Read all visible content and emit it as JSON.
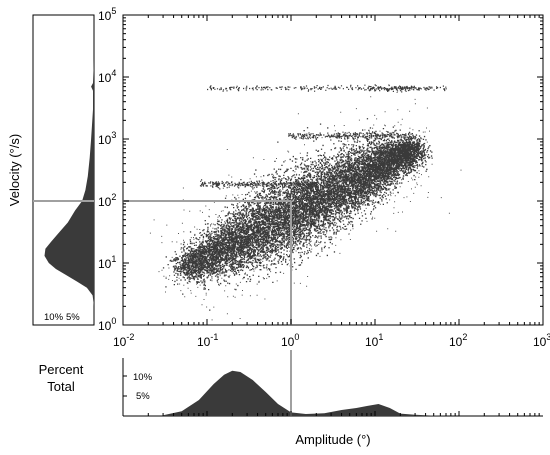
{
  "chart_data": {
    "type": "scatter",
    "x_scale": "log",
    "y_scale": "log",
    "xlabel": "Amplitude (°)",
    "ylabel": "Velocity (°/s)",
    "xlim": [
      0.01,
      1000
    ],
    "ylim": [
      1,
      100000
    ],
    "x_tick_labels": [
      {
        "value": 0.01,
        "base": "10",
        "exp": "-2"
      },
      {
        "value": 0.1,
        "base": "10",
        "exp": "-1"
      },
      {
        "value": 1,
        "base": "10",
        "exp": "0"
      },
      {
        "value": 10,
        "base": "10",
        "exp": "1"
      },
      {
        "value": 100,
        "base": "10",
        "exp": "2"
      },
      {
        "value": 1000,
        "base": "10",
        "exp": "3"
      }
    ],
    "y_tick_labels": [
      {
        "value": 1,
        "base": "10",
        "exp": "0"
      },
      {
        "value": 10,
        "base": "10",
        "exp": "1"
      },
      {
        "value": 100,
        "base": "10",
        "exp": "2"
      },
      {
        "value": 1000,
        "base": "10",
        "exp": "3"
      },
      {
        "value": 10000,
        "base": "10",
        "exp": "4"
      },
      {
        "value": 100000,
        "base": "10",
        "exp": "5"
      }
    ],
    "reference_lines": {
      "x": 1,
      "y": 100
    },
    "grid": false,
    "scatter_color": "#3a3a3a",
    "main_cloud": {
      "points": 12000,
      "x_range": [
        0.03,
        40
      ],
      "center_start": [
        0.05,
        8
      ],
      "center_end": [
        30,
        700
      ]
    },
    "bands": [
      {
        "y": 6700,
        "x_range": [
          0.1,
          70
        ]
      },
      {
        "y": 1150,
        "x_range": [
          0.9,
          30
        ]
      },
      {
        "y": 190,
        "x_range": [
          0.08,
          2
        ]
      }
    ],
    "amplitude_distribution": {
      "label": "Percent Total",
      "tick_labels": [
        "10%",
        "5%"
      ],
      "ticks_percent": [
        10,
        5
      ],
      "x": [
        0.03,
        0.05,
        0.08,
        0.12,
        0.16,
        0.2,
        0.25,
        0.35,
        0.5,
        0.7,
        1.0,
        1.5,
        2.5,
        4,
        6,
        8,
        11,
        15,
        20,
        30,
        50,
        80
      ],
      "percent": [
        0.2,
        1.2,
        4.0,
        8.0,
        10.3,
        11.3,
        11.0,
        9.0,
        6.0,
        3.0,
        0.9,
        0.5,
        0.7,
        1.5,
        2.0,
        2.5,
        3.0,
        2.0,
        0.6,
        0.3,
        0.1,
        0.0
      ]
    },
    "velocity_distribution": {
      "tick_labels": [
        "10%",
        "5%"
      ],
      "ticks_percent": [
        10,
        5
      ],
      "y": [
        2,
        3,
        4,
        5,
        6.5,
        8,
        10,
        13,
        17,
        22,
        30,
        45,
        70,
        100,
        150,
        250,
        500,
        1000,
        3000,
        6000,
        7000,
        8000,
        20000
      ],
      "percent": [
        0,
        0.3,
        1.5,
        3.5,
        6.0,
        8.0,
        9.5,
        10.4,
        10.2,
        9.0,
        7.5,
        5.5,
        4.0,
        2.5,
        1.8,
        1.3,
        0.9,
        0.6,
        0.2,
        0.2,
        0.6,
        0.2,
        0
      ]
    }
  }
}
